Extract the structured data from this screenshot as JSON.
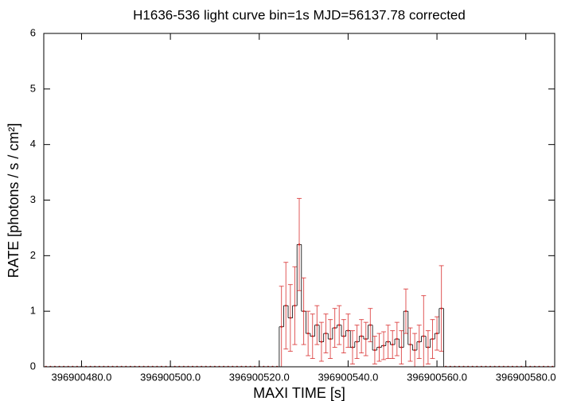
{
  "chart_data": {
    "type": "histeps",
    "title": "H1636-536 light curve bin=1s MJD=56137.78 corrected",
    "xlabel": "MAXI TIME [s]",
    "ylabel": "RATE [photons / s / cm²]",
    "xlim": [
      396900471.5,
      396900586.5
    ],
    "ylim": [
      0,
      6
    ],
    "xticks": [
      {
        "value": 396900480,
        "label": "396900480.0"
      },
      {
        "value": 396900500,
        "label": "396900500.0"
      },
      {
        "value": 396900520,
        "label": "396900520.0"
      },
      {
        "value": 396900540,
        "label": "396900540.0"
      },
      {
        "value": 396900560,
        "label": "396900560.0"
      },
      {
        "value": 396900580,
        "label": "396900580.0"
      }
    ],
    "yticks": [
      0,
      1,
      2,
      3,
      4,
      5,
      6
    ],
    "color": "#d62020",
    "x": [
      396900472,
      396900473,
      396900474,
      396900475,
      396900476,
      396900477,
      396900478,
      396900479,
      396900480,
      396900481,
      396900482,
      396900483,
      396900484,
      396900485,
      396900486,
      396900487,
      396900488,
      396900489,
      396900490,
      396900491,
      396900492,
      396900493,
      396900494,
      396900495,
      396900496,
      396900497,
      396900498,
      396900499,
      396900500,
      396900501,
      396900502,
      396900503,
      396900504,
      396900505,
      396900506,
      396900507,
      396900508,
      396900509,
      396900510,
      396900511,
      396900512,
      396900513,
      396900514,
      396900515,
      396900516,
      396900517,
      396900518,
      396900519,
      396900520,
      396900521,
      396900522,
      396900523,
      396900524,
      396900525,
      396900526,
      396900527,
      396900528,
      396900529,
      396900530,
      396900531,
      396900532,
      396900533,
      396900534,
      396900535,
      396900536,
      396900537,
      396900538,
      396900539,
      396900540,
      396900541,
      396900542,
      396900543,
      396900544,
      396900545,
      396900546,
      396900547,
      396900548,
      396900549,
      396900550,
      396900551,
      396900552,
      396900553,
      396900554,
      396900555,
      396900556,
      396900557,
      396900558,
      396900559,
      396900560,
      396900561,
      396900562,
      396900563,
      396900564,
      396900565,
      396900566,
      396900567,
      396900568,
      396900569,
      396900570,
      396900571,
      396900572,
      396900573,
      396900574,
      396900575,
      396900576,
      396900577,
      396900578,
      396900579,
      396900580,
      396900581,
      396900582,
      396900583,
      396900584,
      396900585,
      396900586
    ],
    "values": [
      0,
      0,
      0,
      0,
      0,
      0,
      0,
      0,
      0,
      0,
      0,
      0,
      0,
      0,
      0,
      0,
      0,
      0,
      0,
      0,
      0,
      0,
      0,
      0,
      0,
      0,
      0,
      0,
      0,
      0,
      0,
      0,
      0,
      0,
      0,
      0,
      0,
      0,
      0,
      0,
      0,
      0,
      0,
      0,
      0,
      0,
      0,
      0,
      0,
      0,
      0,
      0,
      0,
      0.72,
      1.1,
      0.88,
      1.1,
      2.2,
      1.0,
      0.6,
      0.55,
      0.75,
      0.45,
      0.6,
      0.5,
      0.7,
      0.75,
      0.55,
      0.65,
      0.35,
      0.45,
      0.55,
      0.5,
      0.75,
      0.3,
      0.35,
      0.38,
      0.45,
      0.4,
      0.5,
      0.35,
      1.0,
      0.4,
      0.3,
      0.45,
      0.55,
      0.35,
      0.5,
      0.6,
      1.05,
      0,
      0,
      0,
      0,
      0,
      0,
      0,
      0,
      0,
      0,
      0,
      0,
      0,
      0,
      0,
      0,
      0,
      0,
      0,
      0,
      0,
      0,
      0,
      0,
      0
    ],
    "errors": [
      0,
      0,
      0,
      0,
      0,
      0,
      0,
      0,
      0,
      0,
      0,
      0,
      0,
      0,
      0,
      0,
      0,
      0,
      0,
      0,
      0,
      0,
      0,
      0,
      0,
      0,
      0,
      0,
      0,
      0,
      0,
      0,
      0,
      0,
      0,
      0,
      0,
      0,
      0,
      0,
      0,
      0,
      0,
      0,
      0,
      0,
      0,
      0,
      0,
      0,
      0,
      0,
      0,
      0.73,
      0.78,
      0.6,
      0.7,
      0.83,
      0.6,
      0.4,
      0.4,
      0.35,
      0.35,
      0.35,
      0.35,
      0.35,
      0.35,
      0.3,
      0.3,
      0.3,
      0.3,
      0.3,
      0.3,
      0.3,
      0.25,
      0.25,
      0.25,
      0.3,
      0.25,
      0.3,
      0.3,
      0.4,
      0.3,
      0.3,
      0.3,
      0.73,
      0.3,
      0.35,
      0.3,
      0.77,
      0,
      0,
      0,
      0,
      0,
      0,
      0,
      0,
      0,
      0,
      0,
      0,
      0,
      0,
      0,
      0,
      0,
      0,
      0,
      0,
      0,
      0,
      0,
      0,
      0
    ]
  }
}
